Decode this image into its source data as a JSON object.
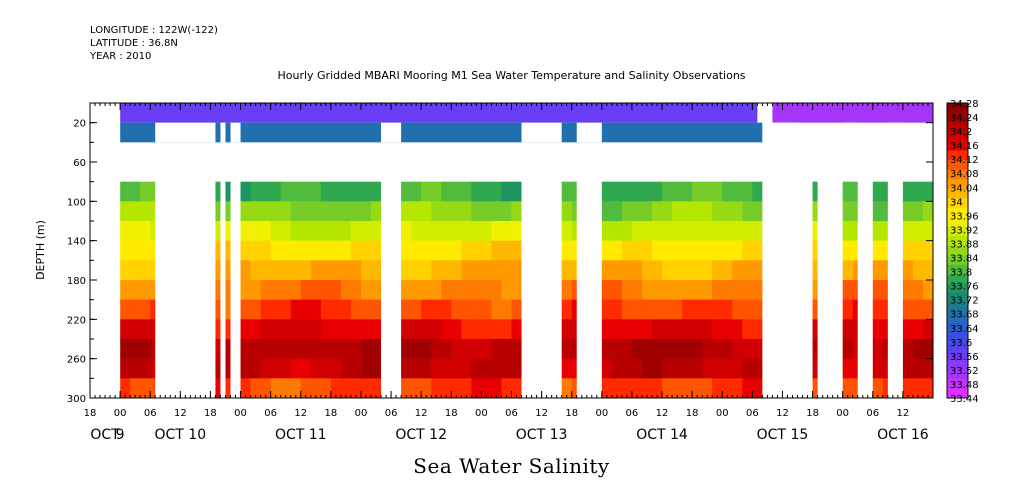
{
  "header": {
    "longitude": "LONGITUDE : 122W(-122)",
    "latitude": "LATITUDE : 36.8N",
    "year": "YEAR : 2010"
  },
  "chart_data": {
    "type": "heatmap",
    "title": "Hourly Gridded MBARI Mooring M1 Sea Water Temperature and Salinity Observations",
    "subtitle": "Sea Water Salinity",
    "ylabel": "DEPTH (m)",
    "xlabel": "",
    "y_reversed": true,
    "ylim": [
      0,
      300
    ],
    "y_ticks": [
      20,
      60,
      100,
      140,
      180,
      220,
      260,
      300
    ],
    "x_range_hours": [
      -6,
      162
    ],
    "x_hour_ticks": [
      {
        "h": -6,
        "label": "18"
      },
      {
        "h": 0,
        "label": "00"
      },
      {
        "h": 6,
        "label": "06"
      },
      {
        "h": 12,
        "label": "12"
      },
      {
        "h": 18,
        "label": "18"
      },
      {
        "h": 24,
        "label": "00"
      },
      {
        "h": 30,
        "label": "06"
      },
      {
        "h": 36,
        "label": "12"
      },
      {
        "h": 42,
        "label": "18"
      },
      {
        "h": 48,
        "label": "00"
      },
      {
        "h": 54,
        "label": "06"
      },
      {
        "h": 60,
        "label": "12"
      },
      {
        "h": 66,
        "label": "18"
      },
      {
        "h": 72,
        "label": "00"
      },
      {
        "h": 78,
        "label": "06"
      },
      {
        "h": 84,
        "label": "12"
      },
      {
        "h": 90,
        "label": "18"
      },
      {
        "h": 96,
        "label": "00"
      },
      {
        "h": 102,
        "label": "06"
      },
      {
        "h": 108,
        "label": "12"
      },
      {
        "h": 114,
        "label": "18"
      },
      {
        "h": 120,
        "label": "00"
      },
      {
        "h": 126,
        "label": "06"
      },
      {
        "h": 132,
        "label": "12"
      },
      {
        "h": 138,
        "label": "18"
      },
      {
        "h": 144,
        "label": "00"
      },
      {
        "h": 150,
        "label": "06"
      },
      {
        "h": 156,
        "label": "12"
      }
    ],
    "date_labels": [
      {
        "h": -3,
        "label": "OCT"
      },
      {
        "h": 12,
        "label": "OCT 10"
      },
      {
        "h": 36,
        "label": "OCT 11"
      },
      {
        "h": 60,
        "label": "OCT 12"
      },
      {
        "h": 84,
        "label": "OCT 13"
      },
      {
        "h": 108,
        "label": "OCT 14"
      },
      {
        "h": 132,
        "label": "OCT 15"
      },
      {
        "h": 156,
        "label": "OCT 16"
      }
    ],
    "oct9_label": "9",
    "oct9_h": 0,
    "colorbar": {
      "labels": [
        "34.28",
        "34.24",
        "34.2",
        "34.16",
        "34.12",
        "34.08",
        "34.04",
        "34",
        "33.96",
        "33.92",
        "33.88",
        "33.84",
        "33.8",
        "33.76",
        "33.72",
        "33.68",
        "33.64",
        "33.6",
        "33.56",
        "33.52",
        "33.48",
        "33.44"
      ],
      "colors": [
        "#8c0000",
        "#a00000",
        "#b80000",
        "#d00000",
        "#e80000",
        "#ff2a00",
        "#ff5500",
        "#ff7a00",
        "#ff9a00",
        "#ffb800",
        "#ffd200",
        "#ffea00",
        "#f0f000",
        "#d2ee00",
        "#b4e600",
        "#96da14",
        "#78cc28",
        "#50bb3c",
        "#30a850",
        "#1e9660",
        "#1a8878",
        "#1e7890",
        "#2070b0",
        "#2a5fcc",
        "#3a4fe0",
        "#5046ee",
        "#6a3ef4",
        "#883af8",
        "#a436fa",
        "#c433fc",
        "#dc30fe"
      ]
    },
    "gaps_hours": [
      [
        7,
        19
      ],
      [
        20,
        21
      ],
      [
        22,
        24
      ],
      [
        52,
        56
      ],
      [
        80,
        88
      ],
      [
        91,
        96
      ],
      [
        128,
        135
      ],
      [
        144,
        147
      ],
      [
        153,
        156
      ]
    ],
    "deep_gaps_hours": [
      [
        7,
        19
      ],
      [
        20,
        21
      ],
      [
        22,
        24
      ],
      [
        52,
        56
      ],
      [
        80,
        88
      ],
      [
        91,
        96
      ],
      [
        128,
        138
      ],
      [
        139,
        144
      ],
      [
        147,
        150
      ],
      [
        153,
        156
      ]
    ],
    "surface_blocks": [
      {
        "depth": [
          0,
          20
        ],
        "value": 33.55,
        "from_h": 0,
        "to_h": 127
      },
      {
        "depth": [
          0,
          20
        ],
        "value": 33.51,
        "from_h": 130,
        "to_h": 162
      },
      {
        "depth": [
          20,
          40
        ],
        "value": 33.66,
        "from_h": 0,
        "to_h": 128
      }
    ],
    "profile": [
      {
        "depth": 80,
        "value": 33.76
      },
      {
        "depth": 100,
        "value": 33.82
      },
      {
        "depth": 120,
        "value": 33.88
      },
      {
        "depth": 140,
        "value": 33.95
      },
      {
        "depth": 160,
        "value": 34.01
      },
      {
        "depth": 180,
        "value": 34.05
      },
      {
        "depth": 200,
        "value": 34.09
      },
      {
        "depth": 220,
        "value": 34.14
      },
      {
        "depth": 240,
        "value": 34.19
      },
      {
        "depth": 260,
        "value": 34.24
      },
      {
        "depth": 280,
        "value": 34.16
      },
      {
        "depth": 300,
        "value": 34.08
      }
    ]
  }
}
